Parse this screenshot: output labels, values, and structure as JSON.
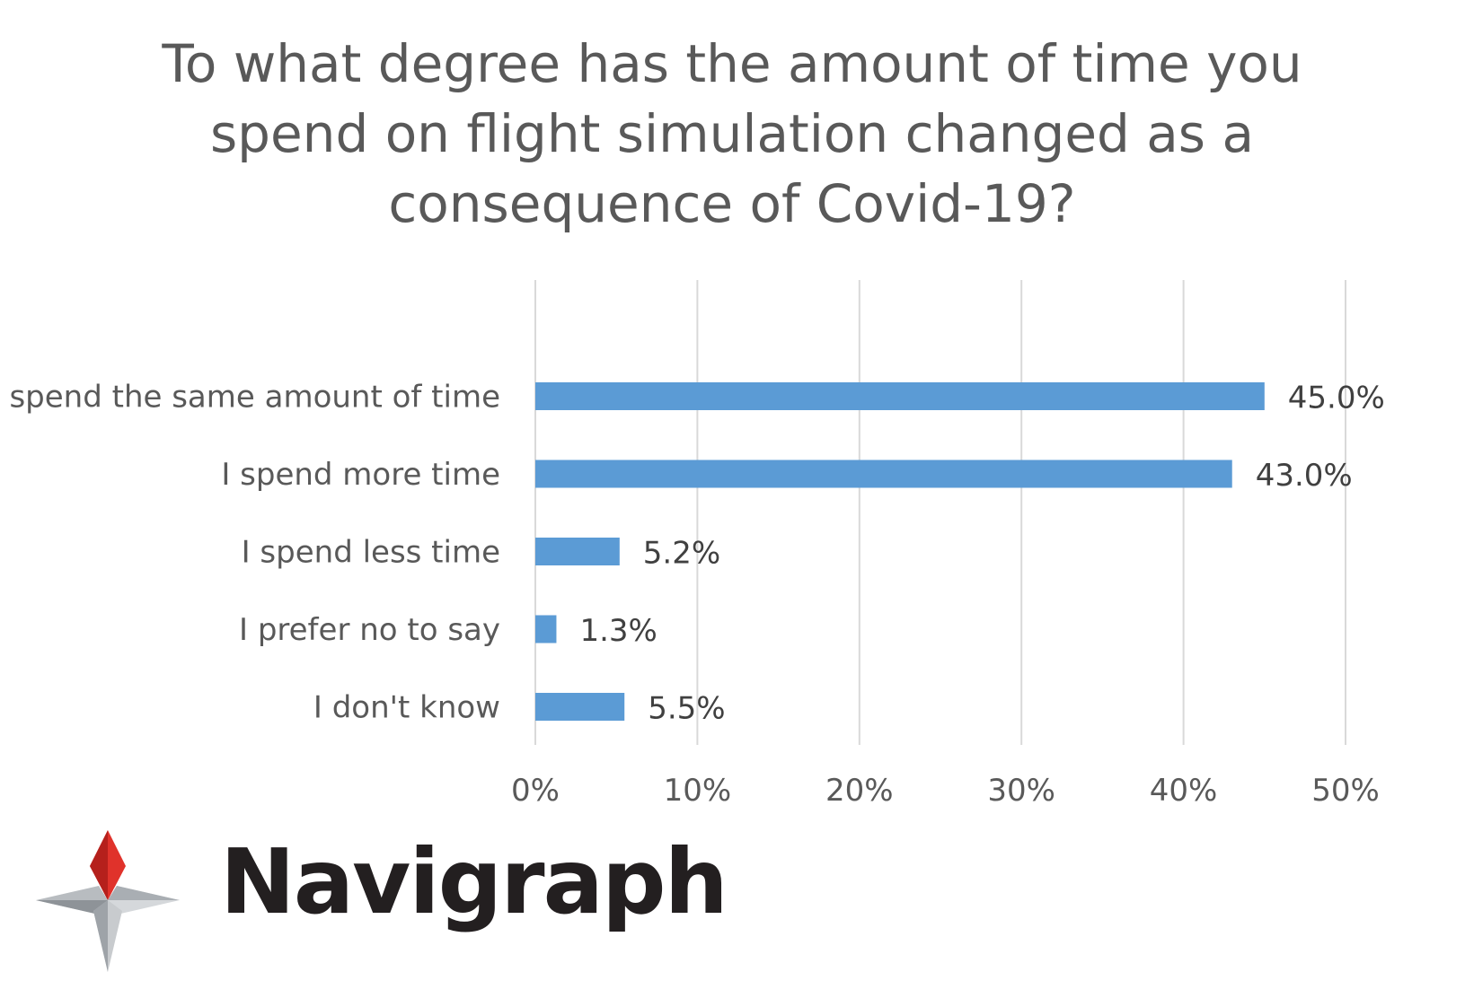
{
  "chart_data": {
    "type": "bar",
    "orientation": "horizontal",
    "title_lines": [
      "To what degree has the amount of time you",
      "spend on flight simulation changed as a",
      "consequence of Covid-19?"
    ],
    "categories": [
      "I spend the same amount of time",
      "I spend more time",
      "I spend less time",
      "I prefer no to say",
      "I don't know"
    ],
    "values": [
      45.0,
      43.0,
      5.2,
      1.3,
      5.5
    ],
    "value_labels": [
      "45.0%",
      "43.0%",
      "5.2%",
      "1.3%",
      "5.5%"
    ],
    "xlim": [
      0,
      50
    ],
    "xticks": [
      0,
      10,
      20,
      30,
      40,
      50
    ],
    "xtick_labels": [
      "0%",
      "10%",
      "20%",
      "30%",
      "40%",
      "50%"
    ],
    "grid": "vertical",
    "bar_color": "#5b9bd5",
    "grid_color": "#d9d9d9",
    "text_color": "#595959"
  },
  "logo": {
    "text": "Navigraph",
    "colors": {
      "red": "#e0322b",
      "gray": "#9ea3a8",
      "dark": "#231f20"
    }
  }
}
